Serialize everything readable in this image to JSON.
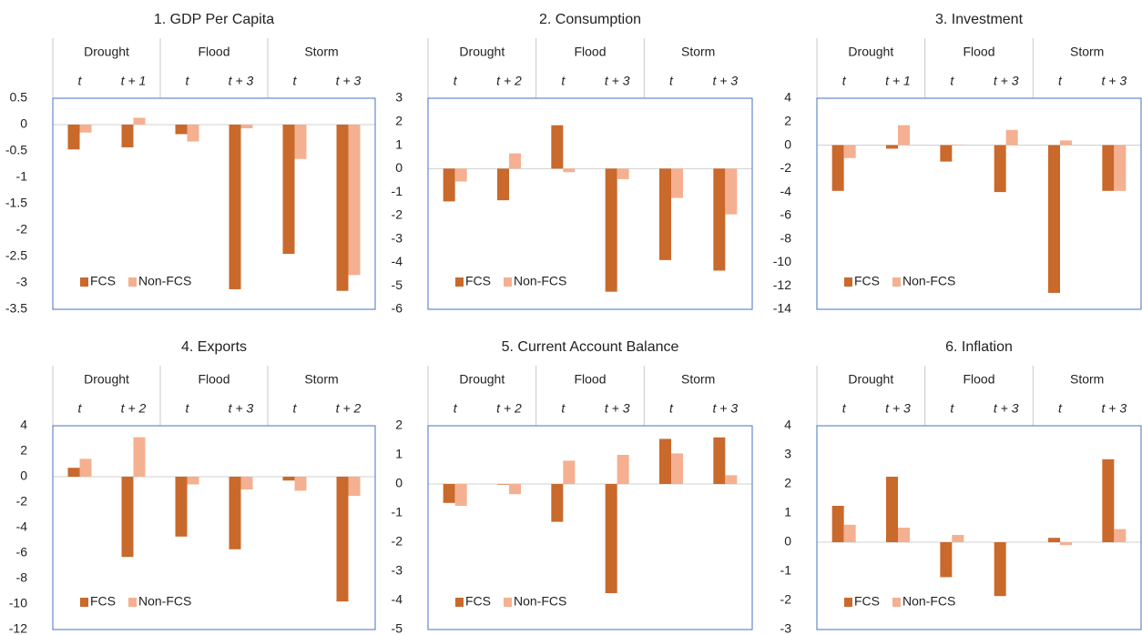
{
  "chart_data": [
    {
      "type": "bar",
      "title": "1. GDP Per Capita",
      "groups": [
        "Drought",
        "Flood",
        "Storm"
      ],
      "categories": [
        "t",
        "t + 1",
        "t",
        "t + 3",
        "t",
        "t + 3"
      ],
      "series": [
        {
          "name": "FCS",
          "color": "#c9692c",
          "values": [
            -0.47,
            -0.43,
            -0.18,
            -3.12,
            -2.45,
            -3.15
          ]
        },
        {
          "name": "Non-FCS",
          "color": "#f4b090",
          "values": [
            -0.15,
            0.13,
            -0.32,
            -0.07,
            -0.65,
            -2.85
          ]
        }
      ],
      "ylim": [
        -3.5,
        0.5
      ],
      "yticks": [
        0.5,
        0,
        -0.5,
        -1,
        -1.5,
        -2,
        -2.5,
        -3,
        -3.5
      ],
      "legend": "lower left"
    },
    {
      "type": "bar",
      "title": "2. Consumption",
      "groups": [
        "Drought",
        "Flood",
        "Storm"
      ],
      "categories": [
        "t",
        "t + 2",
        "t",
        "t + 3",
        "t",
        "t + 3"
      ],
      "series": [
        {
          "name": "FCS",
          "color": "#c9692c",
          "values": [
            -1.4,
            -1.35,
            1.85,
            -5.25,
            -3.9,
            -4.35
          ]
        },
        {
          "name": "Non-FCS",
          "color": "#f4b090",
          "values": [
            -0.55,
            0.65,
            -0.15,
            -0.45,
            -1.25,
            -1.95
          ]
        }
      ],
      "ylim": [
        -6,
        3
      ],
      "yticks": [
        3,
        2,
        1,
        0,
        -1,
        -2,
        -3,
        -4,
        -5,
        -6
      ],
      "legend": "lower left"
    },
    {
      "type": "bar",
      "title": "3. Investment",
      "groups": [
        "Drought",
        "Flood",
        "Storm"
      ],
      "categories": [
        "t",
        "t + 1",
        "t",
        "t + 3",
        "t",
        "t + 3"
      ],
      "series": [
        {
          "name": "FCS",
          "color": "#c9692c",
          "values": [
            -3.9,
            -0.3,
            -1.4,
            -4.0,
            -12.6,
            -3.9
          ]
        },
        {
          "name": "Non-FCS",
          "color": "#f4b090",
          "values": [
            -1.1,
            1.7,
            0.05,
            1.3,
            0.4,
            -3.9
          ]
        }
      ],
      "ylim": [
        -14,
        4
      ],
      "yticks": [
        4,
        2,
        0,
        -2,
        -4,
        -6,
        -8,
        -10,
        -12,
        -14
      ],
      "legend": "lower left"
    },
    {
      "type": "bar",
      "title": "4. Exports",
      "groups": [
        "Drought",
        "Flood",
        "Storm"
      ],
      "categories": [
        "t",
        "t + 2",
        "t",
        "t + 3",
        "t",
        "t + 2"
      ],
      "series": [
        {
          "name": "FCS",
          "color": "#c9692c",
          "values": [
            0.7,
            -6.3,
            -4.7,
            -5.7,
            -0.3,
            -9.8
          ]
        },
        {
          "name": "Non-FCS",
          "color": "#f4b090",
          "values": [
            1.4,
            3.1,
            -0.6,
            -1.0,
            -1.1,
            -1.5
          ]
        }
      ],
      "ylim": [
        -12,
        4
      ],
      "yticks": [
        4,
        2,
        0,
        -2,
        -4,
        -6,
        -8,
        -10,
        -12
      ],
      "legend": "lower left"
    },
    {
      "type": "bar",
      "title": "5. Current Account Balance",
      "groups": [
        "Drought",
        "Flood",
        "Storm"
      ],
      "categories": [
        "t",
        "t + 2",
        "t",
        "t + 3",
        "t",
        "t + 3"
      ],
      "series": [
        {
          "name": "FCS",
          "color": "#c9692c",
          "values": [
            -0.65,
            -0.02,
            -1.3,
            -3.75,
            1.55,
            1.6
          ]
        },
        {
          "name": "Non-FCS",
          "color": "#f4b090",
          "values": [
            -0.75,
            -0.35,
            0.8,
            1.0,
            1.05,
            0.3
          ]
        }
      ],
      "ylim": [
        -5,
        2
      ],
      "yticks": [
        2,
        1,
        0,
        -1,
        -2,
        -3,
        -4,
        -5
      ],
      "legend": "lower left"
    },
    {
      "type": "bar",
      "title": "6. Inflation",
      "groups": [
        "Drought",
        "Flood",
        "Storm"
      ],
      "categories": [
        "t",
        "t + 3",
        "t",
        "t + 3",
        "t",
        "t + 3"
      ],
      "series": [
        {
          "name": "FCS",
          "color": "#c9692c",
          "values": [
            1.25,
            2.25,
            -1.2,
            -1.85,
            0.15,
            2.85
          ]
        },
        {
          "name": "Non-FCS",
          "color": "#f4b090",
          "values": [
            0.6,
            0.5,
            0.25,
            0,
            -0.1,
            0.45
          ]
        }
      ],
      "ylim": [
        -3,
        4
      ],
      "yticks": [
        4,
        3,
        2,
        1,
        0,
        -1,
        -2,
        -3
      ],
      "legend": "lower left"
    }
  ]
}
